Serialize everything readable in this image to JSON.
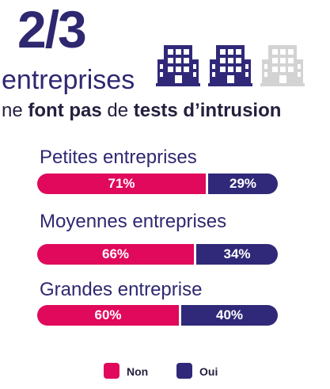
{
  "headline": {
    "fraction": "2/3",
    "line1": "entreprises",
    "line2_parts": [
      "ne ",
      "font pas",
      " de ",
      "tests d’intrusion"
    ]
  },
  "colors": {
    "non": "#e0095c",
    "oui": "#302979",
    "icon_on": "#302979",
    "icon_off": "#d3d3d3"
  },
  "icons": [
    "building-icon",
    "building-icon",
    "building-icon-faded"
  ],
  "chart_data": {
    "type": "bar",
    "stacked": true,
    "orientation": "horizontal",
    "categories": [
      "Petites entreprises",
      "Moyennes entreprises",
      "Grandes entreprise"
    ],
    "series": [
      {
        "name": "Non",
        "values": [
          71,
          66,
          60
        ]
      },
      {
        "name": "Oui",
        "values": [
          29,
          34,
          40
        ]
      }
    ],
    "value_labels": [
      [
        "71%",
        "29%"
      ],
      [
        "66%",
        "34%"
      ],
      [
        "60%",
        "40%"
      ]
    ],
    "legend": {
      "position": "bottom"
    }
  }
}
